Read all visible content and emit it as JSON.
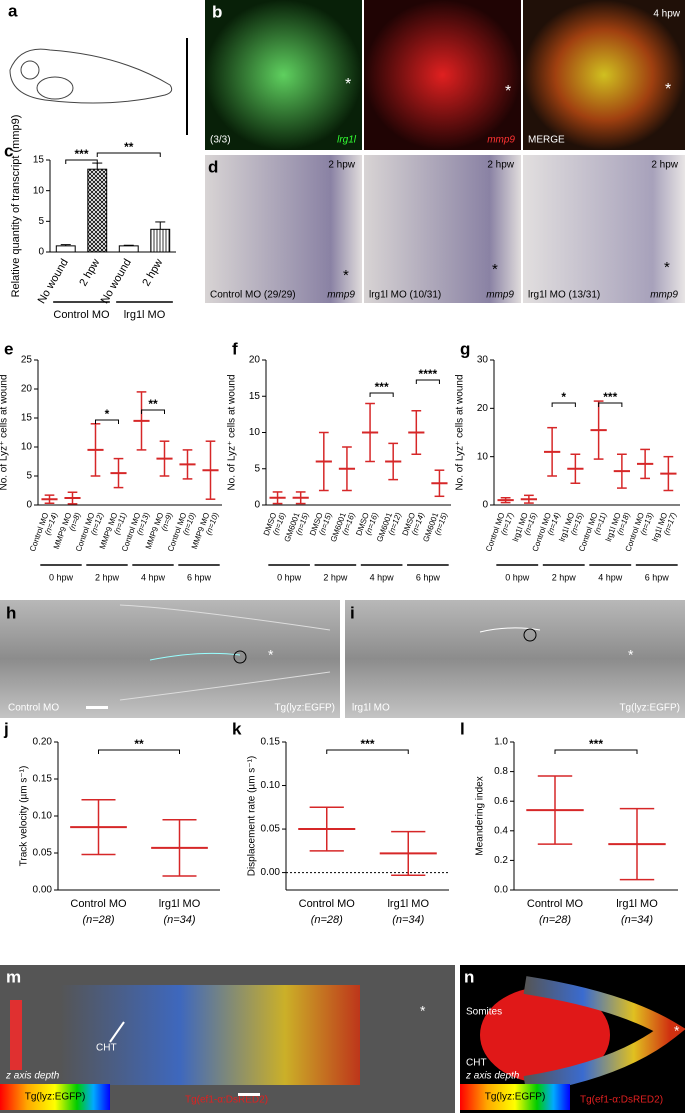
{
  "panels": {
    "a": {
      "label": "a"
    },
    "b": {
      "label": "b",
      "time": "4 hpw",
      "count": "(3/3)",
      "stains": [
        "lrg1l",
        "mmp9",
        "MERGE"
      ],
      "asterisk": "*"
    },
    "c": {
      "label": "c",
      "chart": {
        "type": "bar",
        "ylabel": "Relative quantity of transcript (mmp9)",
        "categories": [
          "No wound",
          "2 hpw",
          "No wound",
          "2 hpw"
        ],
        "values": [
          1,
          13.5,
          1,
          3.7
        ],
        "errors": [
          0.2,
          1,
          0.1,
          1.2
        ],
        "ylim": [
          0,
          15
        ],
        "yticks": [
          0,
          5,
          10,
          15
        ],
        "groups": [
          "Control MO",
          "lrg1l MO"
        ],
        "significance": [
          "***",
          "**"
        ],
        "color": "#000000"
      }
    },
    "d": {
      "label": "d",
      "time": "2 hpw",
      "groups": [
        "Control MO (29/29)",
        "lrg1l MO (10/31)",
        "lrg1l MO (13/31)"
      ],
      "stain": "mmp9",
      "asterisk": "*"
    },
    "e": {
      "label": "e",
      "chart": {
        "type": "scatter",
        "ylabel": "No. of Lyz⁺ cells at wound",
        "categories": [
          "Control MO",
          "MMP9 MO",
          "Control MO",
          "MMP9 MO",
          "Control MO",
          "MMP9 MO",
          "Control MO",
          "MMP9 MO"
        ],
        "n": [
          "(n=14)",
          "(n=8)",
          "(n=12)",
          "(n=11)",
          "(n=13)",
          "(n=9)",
          "(n=10)",
          "(n=10)"
        ],
        "values": [
          1,
          1.2,
          9.5,
          5.5,
          14.5,
          8,
          7,
          6
        ],
        "errors": [
          0.7,
          1,
          4.5,
          2.5,
          5,
          3,
          2.5,
          5
        ],
        "ylim": [
          0,
          25
        ],
        "yticks": [
          0,
          5,
          10,
          15,
          20,
          25
        ],
        "groups": [
          "0 hpw",
          "2 hpw",
          "4 hpw",
          "6 hpw"
        ],
        "significance": [
          "*",
          "**"
        ],
        "color": "#d62728"
      }
    },
    "f": {
      "label": "f",
      "chart": {
        "type": "scatter",
        "ylabel": "No. of Lyz⁺ cells at wound",
        "categories": [
          "DMSO",
          "GM6001",
          "DMSO",
          "GM6001",
          "DMSO",
          "GM6001",
          "DMSO",
          "GM6001"
        ],
        "n": [
          "(n=16)",
          "(n=15)",
          "(n=15)",
          "(n=16)",
          "(n=16)",
          "(n=12)",
          "(n=14)",
          "(n=15)"
        ],
        "values": [
          1,
          1,
          6,
          5,
          10,
          6,
          10,
          3
        ],
        "errors": [
          0.8,
          0.8,
          4,
          3,
          4,
          2.5,
          3,
          1.8
        ],
        "ylim": [
          0,
          20
        ],
        "yticks": [
          0,
          5,
          10,
          15,
          20
        ],
        "groups": [
          "0 hpw",
          "2 hpw",
          "4 hpw",
          "6 hpw"
        ],
        "significance": [
          "***",
          "****"
        ],
        "color": "#d62728"
      }
    },
    "g": {
      "label": "g",
      "chart": {
        "type": "scatter",
        "ylabel": "No. of Lyz⁺ cells at wound",
        "categories": [
          "Control MO",
          "lrg1l MO",
          "Control MO",
          "lrg1l MO",
          "Control MO",
          "lrg1l MO",
          "Control MO",
          "lrg1l MO"
        ],
        "n": [
          "(n=17)",
          "(n=15)",
          "(n=14)",
          "(n=15)",
          "(n=11)",
          "(n=18)",
          "(n=13)",
          "(n=17)"
        ],
        "values": [
          1,
          1.2,
          11,
          7.5,
          15.5,
          7,
          8.5,
          6.5
        ],
        "errors": [
          0.5,
          0.8,
          5,
          3,
          6,
          3.5,
          3,
          3.5
        ],
        "ylim": [
          0,
          30
        ],
        "yticks": [
          0,
          10,
          20,
          30
        ],
        "groups": [
          "0 hpw",
          "2 hpw",
          "4 hpw",
          "6 hpw"
        ],
        "significance": [
          "*",
          "***"
        ],
        "color": "#d62728"
      }
    },
    "h": {
      "label": "h",
      "group": "Control MO",
      "line": "Tg(lyz:EGFP)",
      "asterisk": "*"
    },
    "i": {
      "label": "i",
      "group": "lrg1l MO",
      "line": "Tg(lyz:EGFP)",
      "asterisk": "*"
    },
    "j": {
      "label": "j",
      "chart": {
        "type": "scatter",
        "ylabel": "Track velocity (µm s⁻¹)",
        "categories": [
          "Control MO",
          "lrg1l MO"
        ],
        "n": [
          "(n=28)",
          "(n=34)"
        ],
        "values": [
          0.085,
          0.057
        ],
        "errors": [
          0.037,
          0.038
        ],
        "ylim": [
          0,
          0.2
        ],
        "yticks": [
          {
            "value": 0,
            "label": "0.00"
          },
          0.05,
          {
            "value": 0.1,
            "label": "0.10"
          },
          0.15,
          {
            "value": 0.2,
            "label": "0.20"
          }
        ],
        "significance": [
          "**"
        ],
        "color": "#d62728"
      }
    },
    "k": {
      "label": "k",
      "chart": {
        "type": "scatter",
        "ylabel": "Displacement rate (µm s⁻¹)",
        "categories": [
          "Control MO",
          "lrg1l MO"
        ],
        "n": [
          "(n=28)",
          "(n=34)"
        ],
        "values": [
          0.05,
          0.022
        ],
        "errors": [
          0.025,
          0.025
        ],
        "ylim": [
          -0.02,
          0.15
        ],
        "yticks": [
          {
            "value": 0,
            "label": "0.00"
          },
          0.05,
          {
            "value": 0.1,
            "label": "0.10"
          },
          0.15
        ],
        "significance": [
          "***"
        ],
        "color": "#d62728"
      }
    },
    "l": {
      "label": "l",
      "chart": {
        "type": "scatter",
        "ylabel": "Meandering index",
        "categories": [
          "Control MO",
          "lrg1l MO"
        ],
        "n": [
          "(n=28)",
          "(n=34)"
        ],
        "values": [
          0.54,
          0.31
        ],
        "errors": [
          0.23,
          0.24
        ],
        "ylim": [
          0,
          1
        ],
        "yticks": [
          {
            "value": 0,
            "label": "0.0"
          },
          0.2,
          0.4,
          0.6,
          0.8,
          {
            "value": 1,
            "label": "1.0"
          }
        ],
        "significance": [
          "***"
        ],
        "color": "#d62728"
      }
    },
    "m": {
      "label": "m",
      "cht": "CHT",
      "depth": "z axis depth",
      "line1": "Tg(lyz:EGFP)",
      "line2": "Tg(ef1-α:DsRED2)",
      "asterisk": "*"
    },
    "n": {
      "label": "n",
      "somites": "Somites",
      "cht": "CHT",
      "depth": "z axis depth",
      "line1": "Tg(lyz:EGFP)",
      "line2": "Tg(ef1-α:DsRED2)",
      "asterisk": "*"
    }
  }
}
